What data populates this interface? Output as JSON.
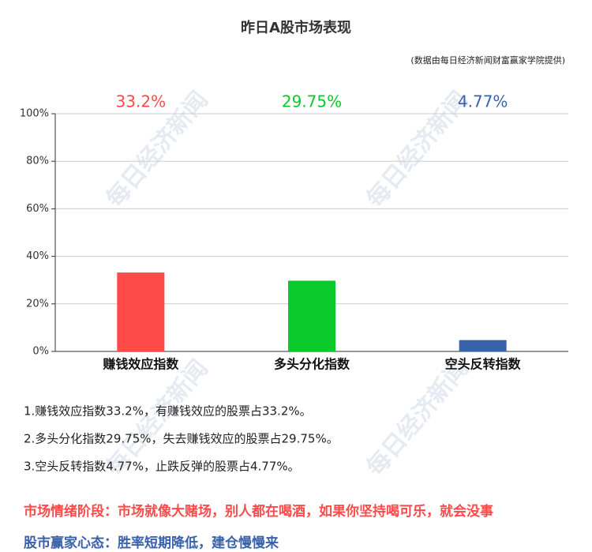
{
  "chart_data": {
    "type": "bar",
    "title": "昨日A股市场表现",
    "subtitle": "(数据由每日经济新闻财富赢家学院提供)",
    "categories": [
      "赚钱效应指数",
      "多头分化指数",
      "空头反转指数"
    ],
    "values": [
      33.2,
      29.75,
      4.77
    ],
    "value_labels": [
      "33.2%",
      "29.75%",
      "4.77%"
    ],
    "colors": [
      "#ff4a4a",
      "#0ac92a",
      "#3a62ab"
    ],
    "ylim": [
      0,
      100
    ],
    "yticks": [
      {
        "value": 0,
        "label": "0%"
      },
      {
        "value": 20,
        "label": "20%"
      },
      {
        "value": 40,
        "label": "40%"
      },
      {
        "value": 60,
        "label": "60%"
      },
      {
        "value": 80,
        "label": "80%"
      },
      {
        "value": 100,
        "label": "100%"
      }
    ],
    "grid": true
  },
  "watermark": "每日经济新闻",
  "notes": [
    "1.赚钱效应指数33.2%，有赚钱效应的股票占33.2%。",
    "2.多头分化指数29.75%，失去赚钱效应的股票占29.75%。",
    "3.空头反转指数4.77%，止跌反弹的股票占4.77%。"
  ],
  "summary": [
    {
      "text": "市场情绪阶段：市场就像大赌场，别人都在喝酒，如果你坚持喝可乐，就会没事",
      "color": "#ff4a4a"
    },
    {
      "text": "股市赢家心态：胜率短期降低，建仓慢慢来",
      "color": "#3a62ab"
    }
  ]
}
